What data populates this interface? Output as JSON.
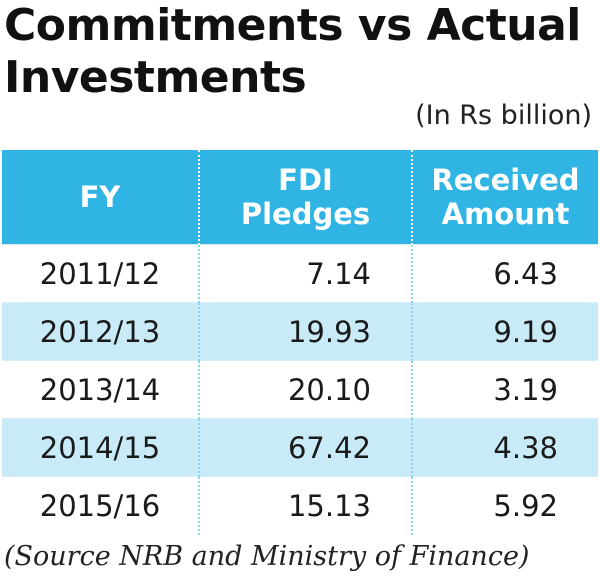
{
  "title_line1": "Commitments vs Actual",
  "title_line2": "Investments",
  "unit_note": "(In Rs billion)",
  "source_note": "(Source NRB and Ministry of Finance)",
  "colors": {
    "header_bg": "#2fb4e3",
    "stripe": "#c9ebf8"
  },
  "chart_data": {
    "type": "table",
    "title": "Commitments vs Actual Investments",
    "unit": "(In Rs billion)",
    "columns": [
      "FY",
      "FDI Pledges",
      "Received Amount"
    ],
    "header_lines": [
      [
        "FY"
      ],
      [
        "FDI",
        "Pledges"
      ],
      [
        "Received",
        "Amount"
      ]
    ],
    "rows": [
      [
        "2011/12",
        "7.14",
        "6.43"
      ],
      [
        "2012/13",
        "19.93",
        "9.19"
      ],
      [
        "2013/14",
        "20.10",
        "3.19"
      ],
      [
        "2014/15",
        "67.42",
        "4.38"
      ],
      [
        "2015/16",
        "15.13",
        "5.92"
      ]
    ]
  }
}
